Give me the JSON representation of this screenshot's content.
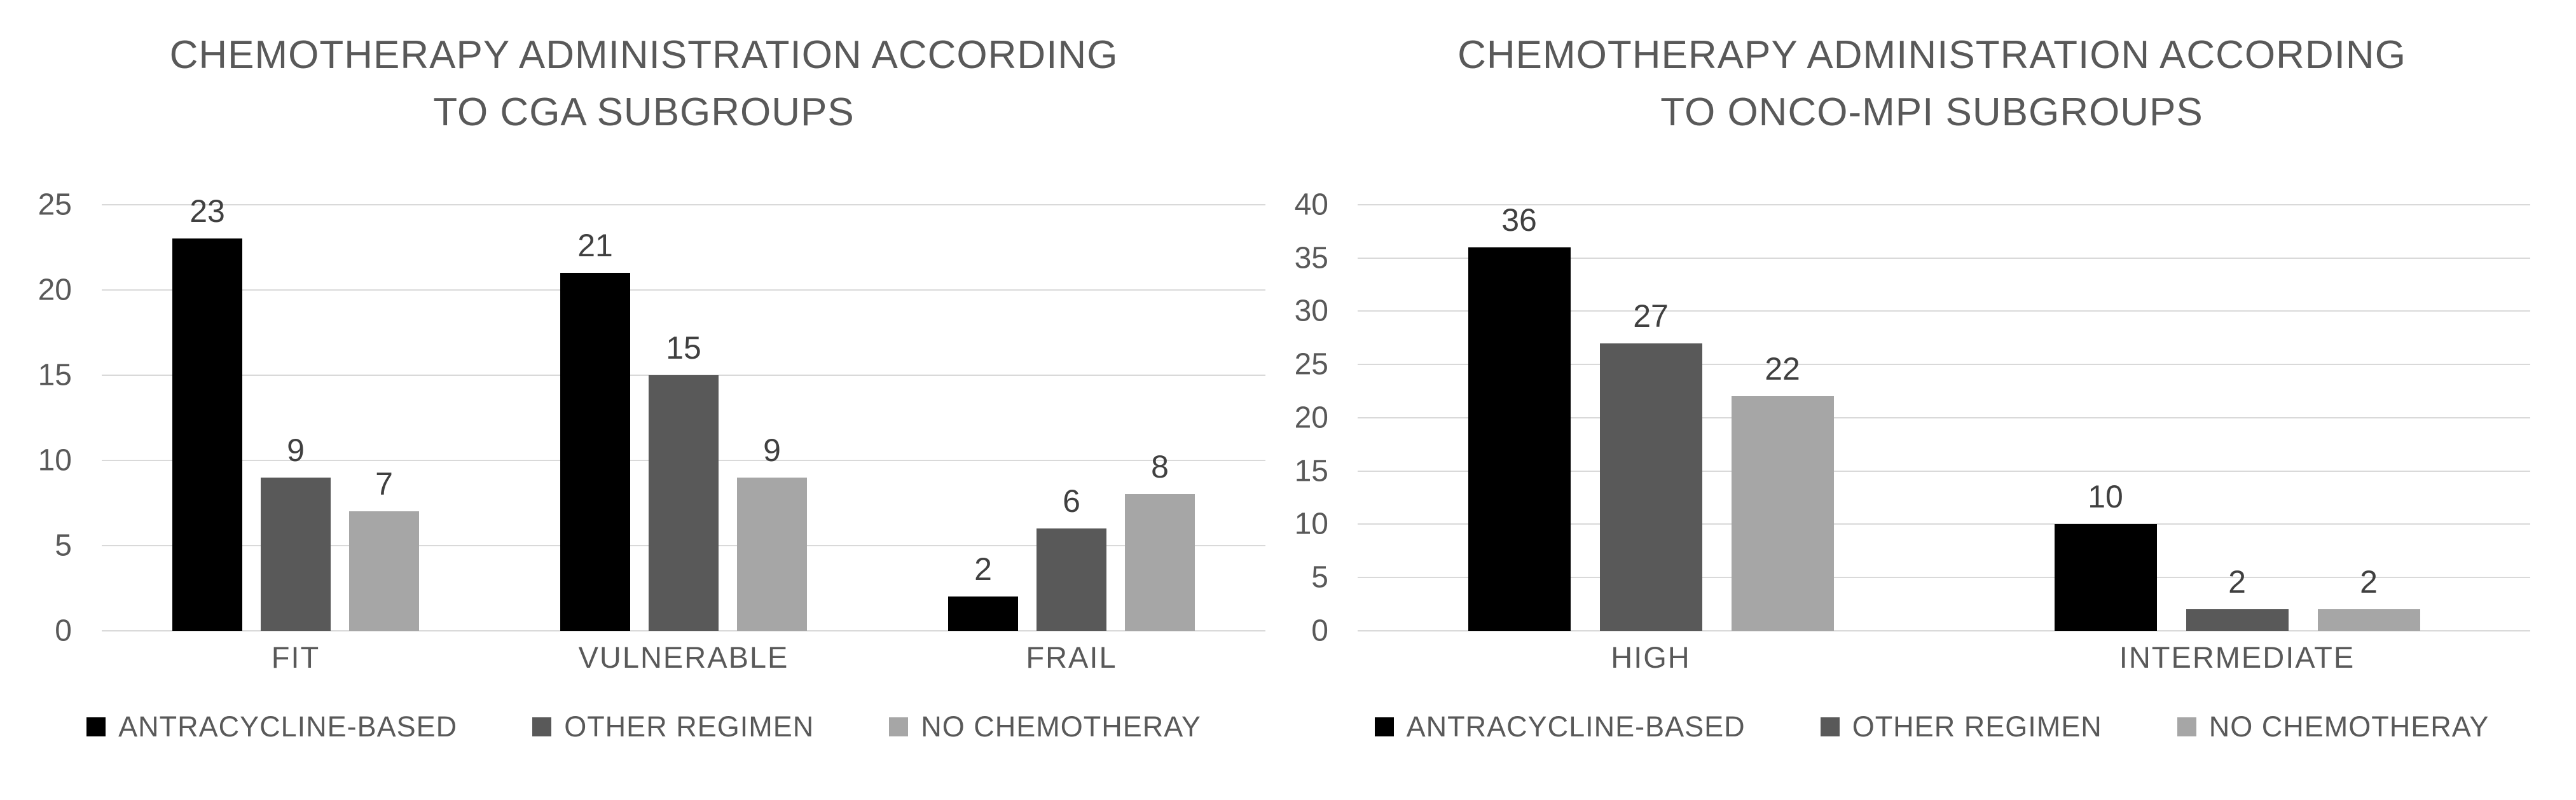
{
  "page": {
    "background": "#ffffff",
    "text_color": "#595959",
    "data_label_color": "#404040",
    "gridline_color": "#d9d9d9"
  },
  "chart_data": [
    {
      "type": "bar",
      "title": "CHEMOTHERAPY ADMINISTRATION ACCORDING TO CGA SUBGROUPS",
      "title_lines": [
        "CHEMOTHERAPY ADMINISTRATION ACCORDING",
        "TO CGA SUBGROUPS"
      ],
      "categories": [
        "FIT",
        "VULNERABLE",
        "FRAIL"
      ],
      "series": [
        {
          "name": "ANTRACYCLINE-BASED",
          "color": "#000000",
          "values": [
            23,
            21,
            2
          ]
        },
        {
          "name": "OTHER REGIMEN",
          "color": "#595959",
          "values": [
            9,
            15,
            6
          ]
        },
        {
          "name": "NO CHEMOTHERAY",
          "color": "#a6a6a6",
          "values": [
            7,
            9,
            8
          ]
        }
      ],
      "ylim": [
        0,
        25
      ],
      "yticks": [
        25,
        20,
        15,
        10,
        5,
        0
      ],
      "grid": true,
      "data_labels": true,
      "legend_position": "bottom"
    },
    {
      "type": "bar",
      "title": "CHEMOTHERAPY ADMINISTRATION ACCORDING TO ONCO-MPI SUBGROUPS",
      "title_lines": [
        "CHEMOTHERAPY ADMINISTRATION ACCORDING",
        "TO ONCO-MPI SUBGROUPS"
      ],
      "categories": [
        "HIGH",
        "INTERMEDIATE"
      ],
      "series": [
        {
          "name": "ANTRACYCLINE-BASED",
          "color": "#000000",
          "values": [
            36,
            10
          ]
        },
        {
          "name": "OTHER REGIMEN",
          "color": "#595959",
          "values": [
            27,
            2
          ]
        },
        {
          "name": "NO CHEMOTHERAY",
          "color": "#a6a6a6",
          "values": [
            22,
            2
          ]
        }
      ],
      "ylim": [
        0,
        40
      ],
      "yticks": [
        40,
        35,
        30,
        25,
        20,
        15,
        10,
        5,
        0
      ],
      "grid": true,
      "data_labels": true,
      "legend_position": "bottom"
    }
  ]
}
